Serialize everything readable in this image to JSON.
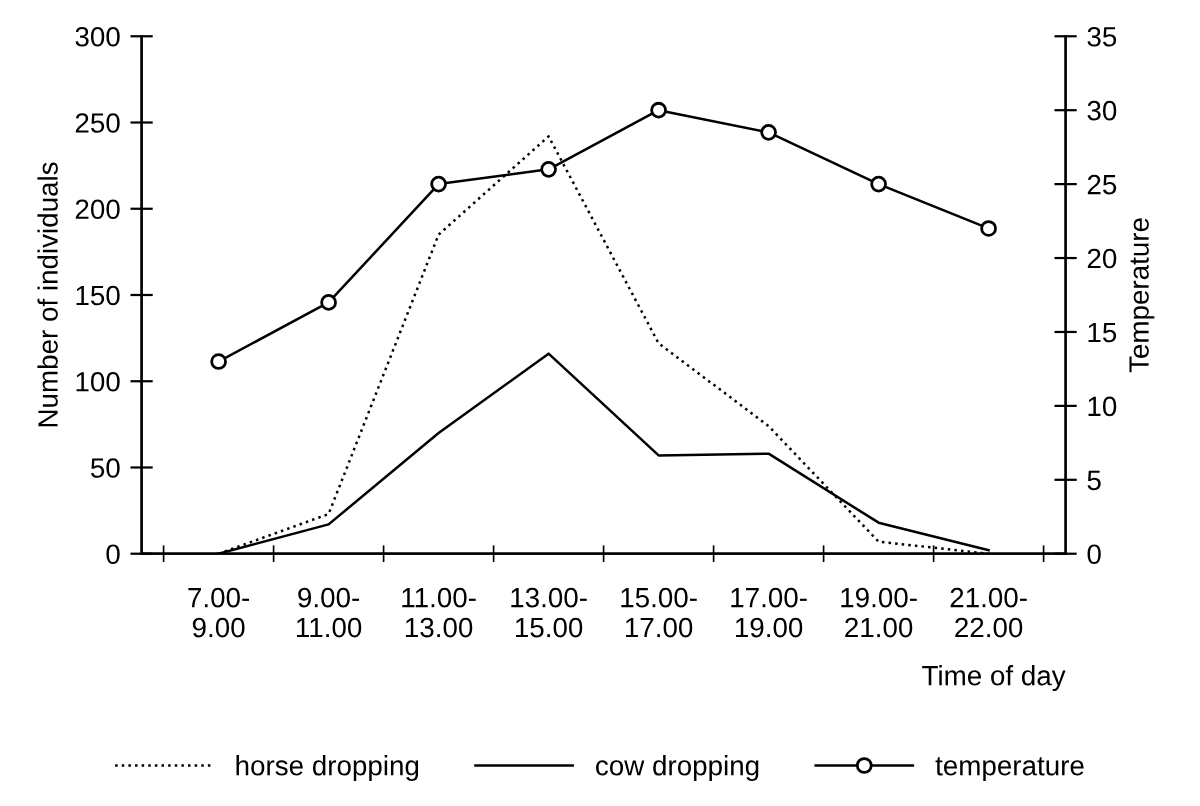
{
  "chart_data": {
    "type": "line",
    "xlabel": "Time of day",
    "ylabel": "Number of individuals",
    "y2label": "Temperature",
    "categories": [
      "7.00-\n9.00",
      "9.00-\n11.00",
      "11.00-\n13.00",
      "13.00-\n15.00",
      "15.00-\n17.00",
      "17.00-\n19.00",
      "19.00-\n21.00",
      "21.00-\n22.00"
    ],
    "series": [
      {
        "name": "horse dropping",
        "color": "#000000",
        "line_style": "dotted",
        "marker": "none",
        "values": [
          0,
          23,
          185,
          242,
          122,
          74,
          7,
          0
        ]
      },
      {
        "name": "cow dropping",
        "color": "#000000",
        "line_style": "solid",
        "marker": "none",
        "values": [
          0,
          17,
          70,
          116,
          57,
          58,
          18,
          2
        ]
      },
      {
        "name": "temperature",
        "color": "#000000",
        "line_style": "solid",
        "marker": "circle",
        "axis": "y2",
        "values": [
          13,
          17,
          25,
          26,
          30,
          28.5,
          25,
          22
        ]
      }
    ],
    "ylim": [
      0,
      300
    ],
    "yticks": [
      0,
      50,
      100,
      150,
      200,
      250,
      300
    ],
    "y2lim": [
      0,
      35
    ],
    "y2ticks": [
      0,
      5,
      10,
      15,
      20,
      25,
      30,
      35
    ],
    "grid": false,
    "legend": "bottom"
  }
}
